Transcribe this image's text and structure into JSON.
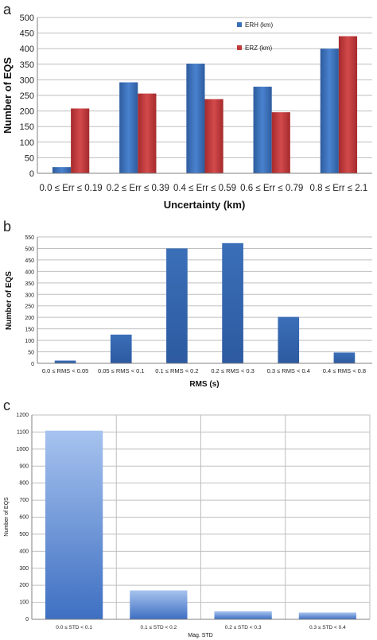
{
  "panel_letters": [
    "a",
    "b",
    "c"
  ],
  "chart_data": [
    {
      "type": "bar",
      "categories": [
        "0.0 ≤ Err ≤ 0.19",
        "0.2 ≤ Err ≤ 0.39",
        "0.4 ≤ Err ≤ 0.59",
        "0.6 ≤ Err ≤ 0.79",
        "0.8 ≤ Err ≤ 2.1"
      ],
      "series": [
        {
          "name": "ERH (km)",
          "values": [
            20,
            292,
            352,
            278,
            400
          ],
          "color": "#3a6fb8"
        },
        {
          "name": "ERZ (km)",
          "values": [
            208,
            256,
            238,
            196,
            440
          ],
          "color": "#c0393b"
        }
      ],
      "xlabel": "Uncertainty (km)",
      "ylabel": "Number of EQS",
      "ylim": [
        0,
        500
      ],
      "yticks": [
        0,
        50,
        100,
        150,
        200,
        250,
        300,
        350,
        400,
        450,
        500
      ],
      "grid": true,
      "legend": "top-right"
    },
    {
      "type": "bar",
      "categories": [
        "0.0 ≤ RMS < 0.05",
        "0.05 ≤ RMS < 0.1",
        "0.1 ≤ RMS < 0.2",
        "0.2 ≤ RMS < 0.3",
        "0.3 ≤ RMS < 0.4",
        "0.4 ≤ RMS < 0.8"
      ],
      "series": [
        {
          "values": [
            12,
            125,
            500,
            523,
            202,
            47
          ],
          "color": "#3a6fb8"
        }
      ],
      "xlabel": "RMS (s)",
      "ylabel": "Number of EQS",
      "ylim": [
        0,
        550
      ],
      "yticks": [
        0,
        50,
        100,
        150,
        200,
        250,
        300,
        350,
        400,
        450,
        500,
        550
      ],
      "grid": true
    },
    {
      "type": "bar",
      "categories": [
        "0.0 ≤ STD < 0.1",
        "0.1 ≤ STD < 0.2",
        "0.2 ≤ STD < 0.3",
        "0.3 ≤ STD < 0.4"
      ],
      "series": [
        {
          "values": [
            1108,
            170,
            47,
            40
          ],
          "color": "#4f7fd0"
        }
      ],
      "xlabel": "Mag. STD",
      "ylabel": "Number of EQS",
      "ylim": [
        0,
        1200
      ],
      "yticks": [
        0,
        100,
        200,
        300,
        400,
        500,
        600,
        700,
        800,
        900,
        1000,
        1100,
        1200
      ],
      "grid": true
    }
  ]
}
